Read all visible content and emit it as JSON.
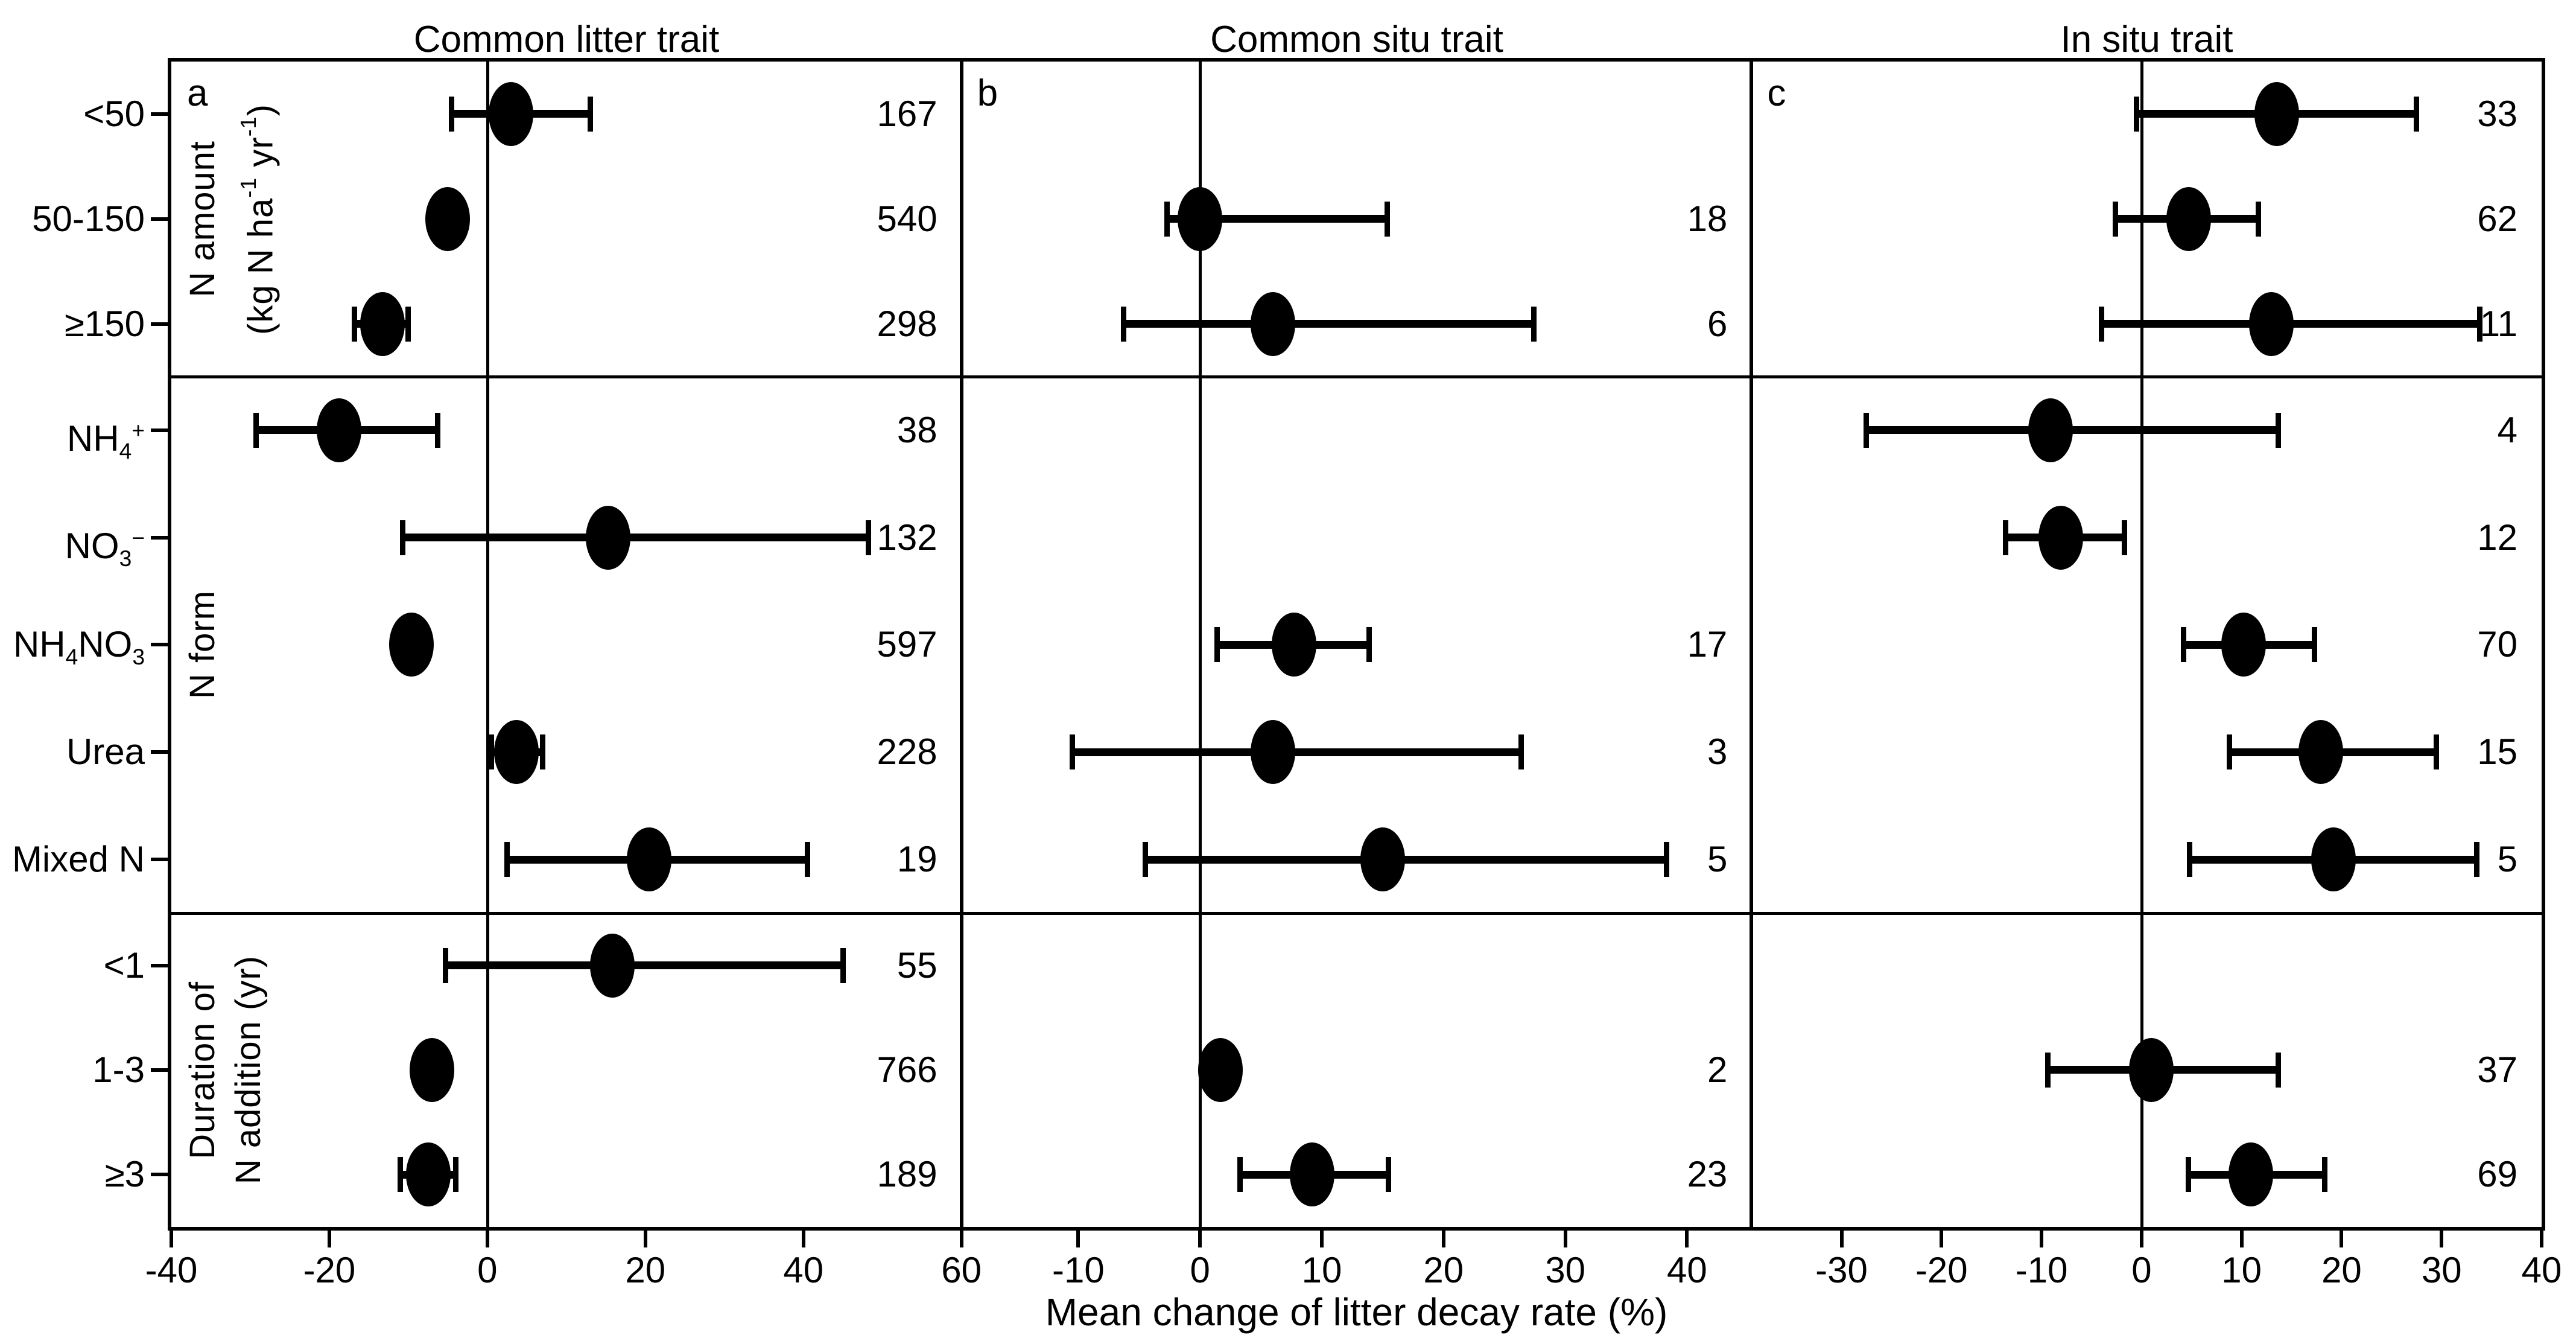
{
  "chart_data": {
    "type": "scatter",
    "description": "Forest-style meta-analysis plot: mean effect dots with horizontal error bars and sample sizes, three panels sharing categorical y-axis",
    "xlabel": "Mean change of litter decay rate (%)",
    "legend_position": "none",
    "grid": "off",
    "panels": [
      {
        "letter": "a",
        "title": "Common litter trait",
        "xmin": -40,
        "xmax": 60,
        "ticks": [
          -40,
          -20,
          0,
          20,
          40,
          60
        ]
      },
      {
        "letter": "b",
        "title": "Common situ trait",
        "xmin": -19.6,
        "xmax": 45.3,
        "ticks": [
          -10,
          0,
          10,
          20,
          30,
          40
        ]
      },
      {
        "letter": "c",
        "title": "In situ trait",
        "xmin": -39,
        "xmax": 40,
        "ticks": [
          -30,
          -20,
          -10,
          0,
          10,
          20,
          30,
          40
        ]
      }
    ],
    "sections": [
      {
        "label_lines": [
          [
            {
              "t": "N amount"
            }
          ],
          [
            {
              "t": "(kg N ha"
            },
            {
              "sup": "-1"
            },
            {
              "t": " yr"
            },
            {
              "sup": "-1"
            },
            {
              "t": ")"
            }
          ]
        ]
      },
      {
        "label_lines": [
          [
            {
              "t": "N form"
            }
          ]
        ]
      },
      {
        "label_lines": [
          [
            {
              "t": "Duration of"
            }
          ],
          [
            {
              "t": "N addition (yr)"
            }
          ]
        ]
      }
    ],
    "rows": [
      {
        "section": 0,
        "label": [
          {
            "t": "<50"
          }
        ],
        "points": {
          "a": {
            "mean": 3,
            "lo": -4.5,
            "hi": 13,
            "n": "167"
          },
          "c": {
            "mean": 13.5,
            "lo": -0.5,
            "hi": 27.5,
            "n": "33"
          }
        }
      },
      {
        "section": 0,
        "label": [
          {
            "t": "50-150"
          }
        ],
        "points": {
          "a": {
            "mean": -5,
            "n": "540"
          },
          "b": {
            "mean": 0,
            "lo": -2.7,
            "hi": 15.4,
            "n": "18"
          },
          "c": {
            "mean": 4.7,
            "lo": -2.6,
            "hi": 11.7,
            "n": "62"
          }
        }
      },
      {
        "section": 0,
        "label": [
          {
            "t": "≥150"
          }
        ],
        "points": {
          "a": {
            "mean": -13.3,
            "lo": -16.8,
            "hi": -10,
            "n": "298"
          },
          "b": {
            "mean": 6,
            "lo": -6.3,
            "hi": 27.4,
            "n": "6"
          },
          "c": {
            "mean": 13,
            "lo": -4,
            "hi": 33.8,
            "n": "11"
          }
        }
      },
      {
        "section": 1,
        "label": [
          {
            "t": "NH"
          },
          {
            "sub": "4"
          },
          {
            "sup": "+"
          }
        ],
        "points": {
          "a": {
            "mean": -18.8,
            "lo": -29.3,
            "hi": -6.3,
            "n": "38"
          },
          "c": {
            "mean": -9.1,
            "lo": -27.5,
            "hi": 13.7,
            "n": "4"
          }
        }
      },
      {
        "section": 1,
        "label": [
          {
            "t": "NO"
          },
          {
            "sub": "3"
          },
          {
            "sup": "−"
          }
        ],
        "points": {
          "a": {
            "mean": 15.3,
            "lo": -10.7,
            "hi": 48.2,
            "n": "132"
          },
          "c": {
            "mean": -8.1,
            "lo": -13.6,
            "hi": -1.7,
            "n": "12"
          }
        }
      },
      {
        "section": 1,
        "label": [
          {
            "t": "NH"
          },
          {
            "sub": "4"
          },
          {
            "t": "NO"
          },
          {
            "sub": "3"
          }
        ],
        "points": {
          "a": {
            "mean": -9.6,
            "n": "597"
          },
          "b": {
            "mean": 7.7,
            "lo": 1.4,
            "hi": 13.9,
            "n": "17"
          },
          "c": {
            "mean": 10.2,
            "lo": 4.2,
            "hi": 17.3,
            "n": "70"
          }
        }
      },
      {
        "section": 1,
        "label": [
          {
            "t": "Urea"
          }
        ],
        "points": {
          "a": {
            "mean": 3.7,
            "lo": 0.5,
            "hi": 7,
            "n": "228"
          },
          "b": {
            "mean": 6,
            "lo": -10.5,
            "hi": 26.4,
            "n": "3"
          },
          "c": {
            "mean": 17.9,
            "lo": 8.8,
            "hi": 29.5,
            "n": "15"
          }
        }
      },
      {
        "section": 1,
        "label": [
          {
            "t": "Mixed N"
          }
        ],
        "points": {
          "a": {
            "mean": 20.5,
            "lo": 2.5,
            "hi": 40.5,
            "n": "19"
          },
          "b": {
            "mean": 15,
            "lo": -4.5,
            "hi": 38.3,
            "n": "5"
          },
          "c": {
            "mean": 19.2,
            "lo": 4.8,
            "hi": 33.5,
            "n": "5"
          }
        }
      },
      {
        "section": 2,
        "label": [
          {
            "t": "<1"
          }
        ],
        "points": {
          "a": {
            "mean": 15.8,
            "lo": -5.3,
            "hi": 45,
            "n": "55"
          }
        }
      },
      {
        "section": 2,
        "label": [
          {
            "t": "1-3"
          }
        ],
        "points": {
          "a": {
            "mean": -7,
            "n": "766"
          },
          "b": {
            "mean": 1.7,
            "n": "2"
          },
          "c": {
            "mean": 1,
            "lo": -9.4,
            "hi": 13.7,
            "n": "37"
          }
        }
      },
      {
        "section": 2,
        "label": [
          {
            "t": "≥3"
          }
        ],
        "points": {
          "a": {
            "mean": -7.5,
            "lo": -11,
            "hi": -4,
            "n": "189"
          },
          "b": {
            "mean": 9.2,
            "lo": 3.3,
            "hi": 15.5,
            "n": "23"
          },
          "c": {
            "mean": 10.9,
            "lo": 4.7,
            "hi": 18.3,
            "n": "69"
          }
        }
      }
    ],
    "marker_color": "#000000",
    "background_color": "#ffffff"
  }
}
